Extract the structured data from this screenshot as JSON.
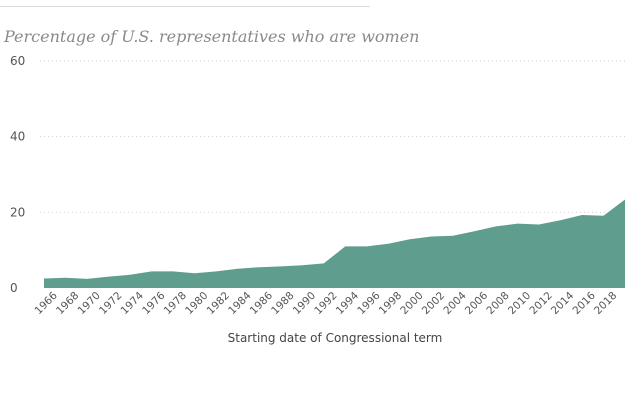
{
  "chart_data": {
    "type": "area",
    "title": "Percentage of U.S. representatives who are women",
    "xlabel": "Starting date of Congressional term",
    "ylabel": "",
    "x": [
      1965,
      1967,
      1969,
      1971,
      1973,
      1975,
      1977,
      1979,
      1981,
      1983,
      1985,
      1987,
      1989,
      1991,
      1993,
      1995,
      1997,
      1999,
      2001,
      2003,
      2005,
      2007,
      2009,
      2011,
      2013,
      2015,
      2017,
      2019
    ],
    "values": [
      2.5,
      2.7,
      2.4,
      3.0,
      3.5,
      4.4,
      4.4,
      3.9,
      4.4,
      5.1,
      5.5,
      5.7,
      6.0,
      6.5,
      11.0,
      11.0,
      11.7,
      12.9,
      13.6,
      13.8,
      15.0,
      16.3,
      17.0,
      16.8,
      17.9,
      19.3,
      19.1,
      23.4
    ],
    "x_tick_labels": [
      "1966",
      "1968",
      "1970",
      "1972",
      "1974",
      "1976",
      "1978",
      "1980",
      "1982",
      "1984",
      "1986",
      "1988",
      "1990",
      "1992",
      "1994",
      "1996",
      "1998",
      "2000",
      "2002",
      "2004",
      "2006",
      "2008",
      "2010",
      "2012",
      "2014",
      "2016",
      "2018"
    ],
    "y_ticks": [
      0,
      20,
      40,
      60
    ],
    "ylim": [
      0,
      60
    ],
    "xlim": [
      1965,
      2019
    ],
    "grid": true,
    "color": "#5f9e8f"
  }
}
